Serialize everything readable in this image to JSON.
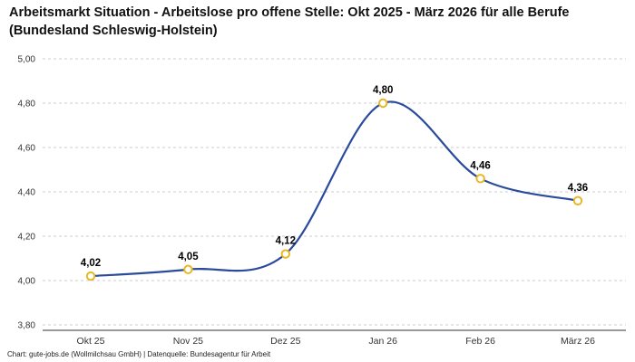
{
  "title": "Arbeitsmarkt Situation - Arbeitslose pro offene Stelle: Okt 2025 - März 2026 für alle Berufe (Bundesland Schleswig-Holstein)",
  "footer": "Chart: gute-jobs.de (Wollmilchsau GmbH) | Datenquelle: Bundesagentur für Arbeit",
  "chart_data": {
    "type": "line",
    "title": "Arbeitsmarkt Situation - Arbeitslose pro offene Stelle: Okt 2025 - März 2026 für alle Berufe (Bundesland Schleswig-Holstein)",
    "categories": [
      "Okt 25",
      "Nov 25",
      "Dez 25",
      "Jan 26",
      "Feb 26",
      "März 26"
    ],
    "values": [
      4.02,
      4.05,
      4.12,
      4.8,
      4.46,
      4.36
    ],
    "point_labels": [
      "4,02",
      "4,05",
      "4,12",
      "4,80",
      "4,46",
      "4,36"
    ],
    "y_ticks": [
      {
        "value": 3.8,
        "label": "3,80"
      },
      {
        "value": 4.0,
        "label": "4,00"
      },
      {
        "value": 4.2,
        "label": "4,20"
      },
      {
        "value": 4.4,
        "label": "4,40"
      },
      {
        "value": 4.6,
        "label": "4,60"
      },
      {
        "value": 4.8,
        "label": "4,80"
      },
      {
        "value": 5.0,
        "label": "5,00"
      }
    ],
    "ylim": [
      3.8,
      5.0
    ],
    "xlabel": "",
    "ylabel": "",
    "grid": "horizontal-dashed",
    "legend": "none",
    "colors": {
      "line": "#2a4a9c",
      "marker_fill": "#ffffff",
      "marker_stroke": "#e8b723",
      "grid": "#cccccc",
      "axis": "#333333",
      "label": "#000000",
      "tick_text": "#333333"
    }
  }
}
